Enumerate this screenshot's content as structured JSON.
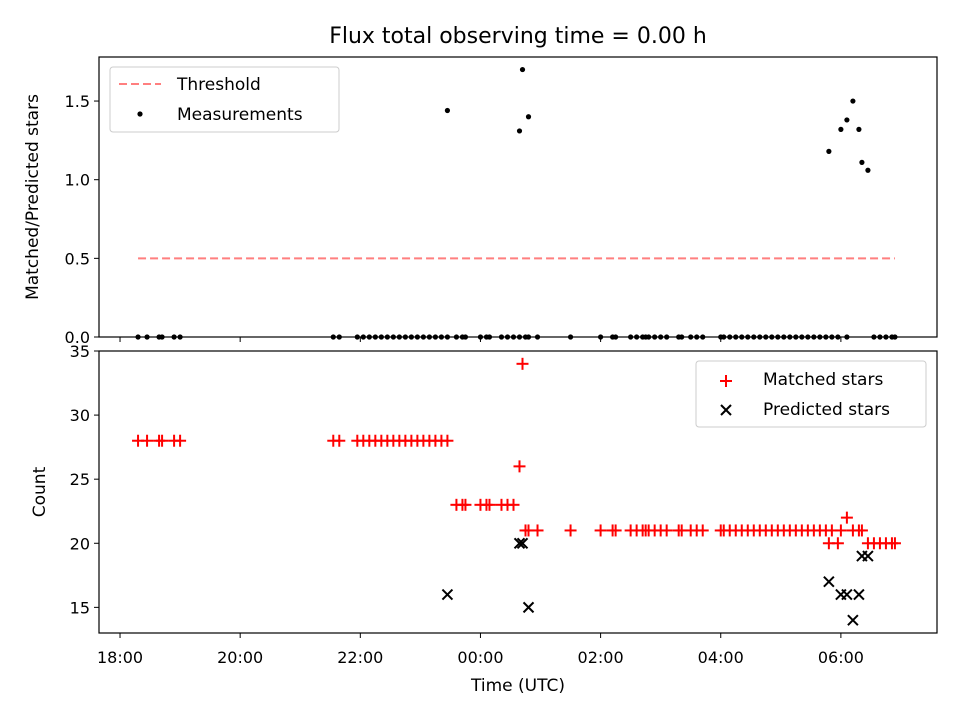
{
  "chart_data": [
    {
      "type": "scatter",
      "title": "Flux total observing time = 0.00 h",
      "xlabel": "",
      "ylabel": "Matched/Predicted stars",
      "xlim": [
        17.65,
        31.6
      ],
      "ylim": [
        0,
        1.78
      ],
      "xticks": [
        18,
        20,
        22,
        24,
        26,
        28,
        30
      ],
      "yticks": [
        0,
        0.5,
        1.0,
        1.5
      ],
      "ytick_labels": [
        "0.0",
        "0.5",
        "1.0",
        "1.5"
      ],
      "legend_position": "upper-left",
      "series": [
        {
          "name": "Threshold",
          "style": "dashed-line",
          "color": "#ff7f7f",
          "x": [
            18.3,
            30.9
          ],
          "y": [
            0.5,
            0.5
          ]
        },
        {
          "name": "Measurements",
          "style": "dot",
          "color": "#000000",
          "x": [
            18.3,
            18.45,
            18.65,
            18.7,
            18.9,
            19.0,
            21.55,
            21.65,
            21.95,
            22.05,
            22.15,
            22.25,
            22.35,
            22.45,
            22.55,
            22.65,
            22.75,
            22.85,
            22.95,
            23.05,
            23.15,
            23.25,
            23.35,
            23.45,
            23.6,
            23.7,
            23.75,
            24.0,
            24.1,
            24.15,
            24.35,
            24.45,
            24.55,
            24.65,
            24.75,
            24.8,
            24.95,
            25.5,
            26.0,
            26.2,
            26.25,
            26.5,
            26.6,
            26.7,
            26.75,
            26.8,
            26.9,
            27.0,
            27.1,
            27.3,
            27.35,
            27.5,
            27.6,
            27.7,
            28.0,
            28.05,
            28.15,
            28.25,
            28.35,
            28.45,
            28.55,
            28.65,
            28.75,
            28.85,
            28.95,
            29.05,
            29.15,
            29.25,
            29.35,
            29.45,
            29.55,
            29.65,
            29.75,
            29.85,
            29.95,
            30.1,
            30.55,
            30.65,
            30.75,
            30.85,
            30.9,
            23.45,
            24.65,
            24.7,
            24.8,
            29.8,
            30.0,
            30.1,
            30.2,
            30.3,
            30.35,
            30.45
          ],
          "y": [
            0,
            0,
            0,
            0,
            0,
            0,
            0,
            0,
            0,
            0,
            0,
            0,
            0,
            0,
            0,
            0,
            0,
            0,
            0,
            0,
            0,
            0,
            0,
            0,
            0,
            0,
            0,
            0,
            0,
            0,
            0,
            0,
            0,
            0,
            0,
            0,
            0,
            0,
            0,
            0,
            0,
            0,
            0,
            0,
            0,
            0,
            0,
            0,
            0,
            0,
            0,
            0,
            0,
            0,
            0,
            0,
            0,
            0,
            0,
            0,
            0,
            0,
            0,
            0,
            0,
            0,
            0,
            0,
            0,
            0,
            0,
            0,
            0,
            0,
            0,
            0,
            0,
            0,
            0,
            0,
            0,
            1.44,
            1.31,
            1.7,
            1.4,
            1.18,
            1.32,
            1.38,
            1.5,
            1.32,
            1.11,
            1.06
          ]
        }
      ]
    },
    {
      "type": "scatter",
      "title": "",
      "xlabel": "Time (UTC)",
      "ylabel": "Count",
      "xlim": [
        17.65,
        31.6
      ],
      "ylim": [
        13,
        35
      ],
      "xticks": [
        18,
        20,
        22,
        24,
        26,
        28,
        30
      ],
      "xtick_labels": [
        "18:00",
        "20:00",
        "22:00",
        "00:00",
        "02:00",
        "04:00",
        "06:00"
      ],
      "yticks": [
        15,
        20,
        25,
        30,
        35
      ],
      "ytick_labels": [
        "15",
        "20",
        "25",
        "30",
        "35"
      ],
      "legend_position": "upper-right",
      "series": [
        {
          "name": "Matched stars",
          "marker": "plus",
          "color": "#ff0000",
          "x": [
            18.3,
            18.45,
            18.65,
            18.7,
            18.9,
            19.0,
            21.55,
            21.65,
            21.95,
            22.05,
            22.15,
            22.25,
            22.35,
            22.45,
            22.55,
            22.65,
            22.75,
            22.85,
            22.95,
            23.05,
            23.15,
            23.25,
            23.35,
            23.45,
            23.6,
            23.7,
            23.75,
            24.0,
            24.1,
            24.15,
            24.35,
            24.45,
            24.55,
            24.65,
            24.7,
            24.75,
            24.8,
            24.95,
            25.5,
            26.0,
            26.2,
            26.25,
            26.5,
            26.6,
            26.7,
            26.75,
            26.8,
            26.9,
            27.0,
            27.1,
            27.3,
            27.35,
            27.5,
            27.6,
            27.7,
            28.0,
            28.05,
            28.15,
            28.25,
            28.35,
            28.45,
            28.55,
            28.65,
            28.75,
            28.85,
            28.95,
            29.05,
            29.15,
            29.25,
            29.35,
            29.45,
            29.55,
            29.65,
            29.75,
            29.8,
            29.85,
            29.95,
            30.0,
            30.1,
            30.2,
            30.3,
            30.35,
            30.45,
            30.55,
            30.65,
            30.75,
            30.85,
            30.9
          ],
          "y": [
            28,
            28,
            28,
            28,
            28,
            28,
            28,
            28,
            28,
            28,
            28,
            28,
            28,
            28,
            28,
            28,
            28,
            28,
            28,
            28,
            28,
            28,
            28,
            28,
            23,
            23,
            23,
            23,
            23,
            23,
            23,
            23,
            23,
            26,
            34,
            21,
            21,
            21,
            21,
            21,
            21,
            21,
            21,
            21,
            21,
            21,
            21,
            21,
            21,
            21,
            21,
            21,
            21,
            21,
            21,
            21,
            21,
            21,
            21,
            21,
            21,
            21,
            21,
            21,
            21,
            21,
            21,
            21,
            21,
            21,
            21,
            21,
            21,
            21,
            20,
            21,
            20,
            21,
            22,
            21,
            21,
            21,
            20,
            20,
            20,
            20,
            20,
            20
          ]
        },
        {
          "name": "Predicted stars",
          "marker": "x",
          "color": "#000000",
          "x": [
            23.45,
            24.65,
            24.7,
            24.8,
            29.8,
            30.0,
            30.1,
            30.2,
            30.3,
            30.35,
            30.45
          ],
          "y": [
            16,
            20,
            20,
            15,
            17,
            16,
            16,
            14,
            16,
            19,
            19
          ]
        }
      ]
    }
  ]
}
